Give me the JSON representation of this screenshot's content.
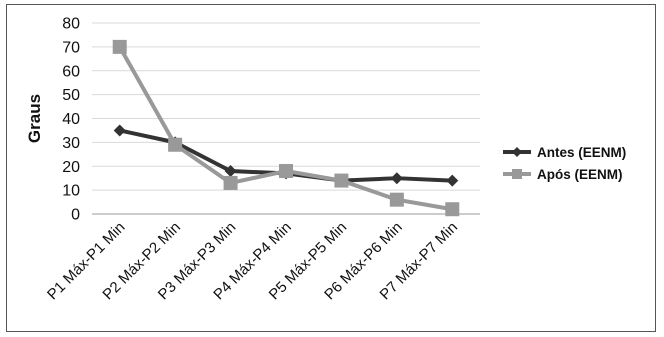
{
  "chart_data": {
    "type": "line",
    "categories": [
      "P1 Máx-P1 Min",
      "P2 Máx-P2 Min",
      "P3 Máx-P3 Min",
      "P4 Máx-P4 Min",
      "P5 Máx-P5 Min",
      "P6 Máx-P6 Min",
      "P7 Máx-P7 Min"
    ],
    "series": [
      {
        "name": "Antes (EENM)",
        "values": [
          35,
          30,
          18,
          17,
          14,
          15,
          14
        ],
        "color": "#333333",
        "marker": "diamond"
      },
      {
        "name": "Após (EENM)",
        "values": [
          70,
          29,
          13,
          18,
          14,
          6,
          2
        ],
        "color": "#999999",
        "marker": "square"
      }
    ],
    "title": "",
    "xlabel": "",
    "ylabel": "Graus",
    "ylim": [
      0,
      80
    ],
    "yticks": [
      0,
      10,
      20,
      30,
      40,
      50,
      60,
      70,
      80
    ],
    "grid": "horizontal",
    "legend_position": "right"
  }
}
